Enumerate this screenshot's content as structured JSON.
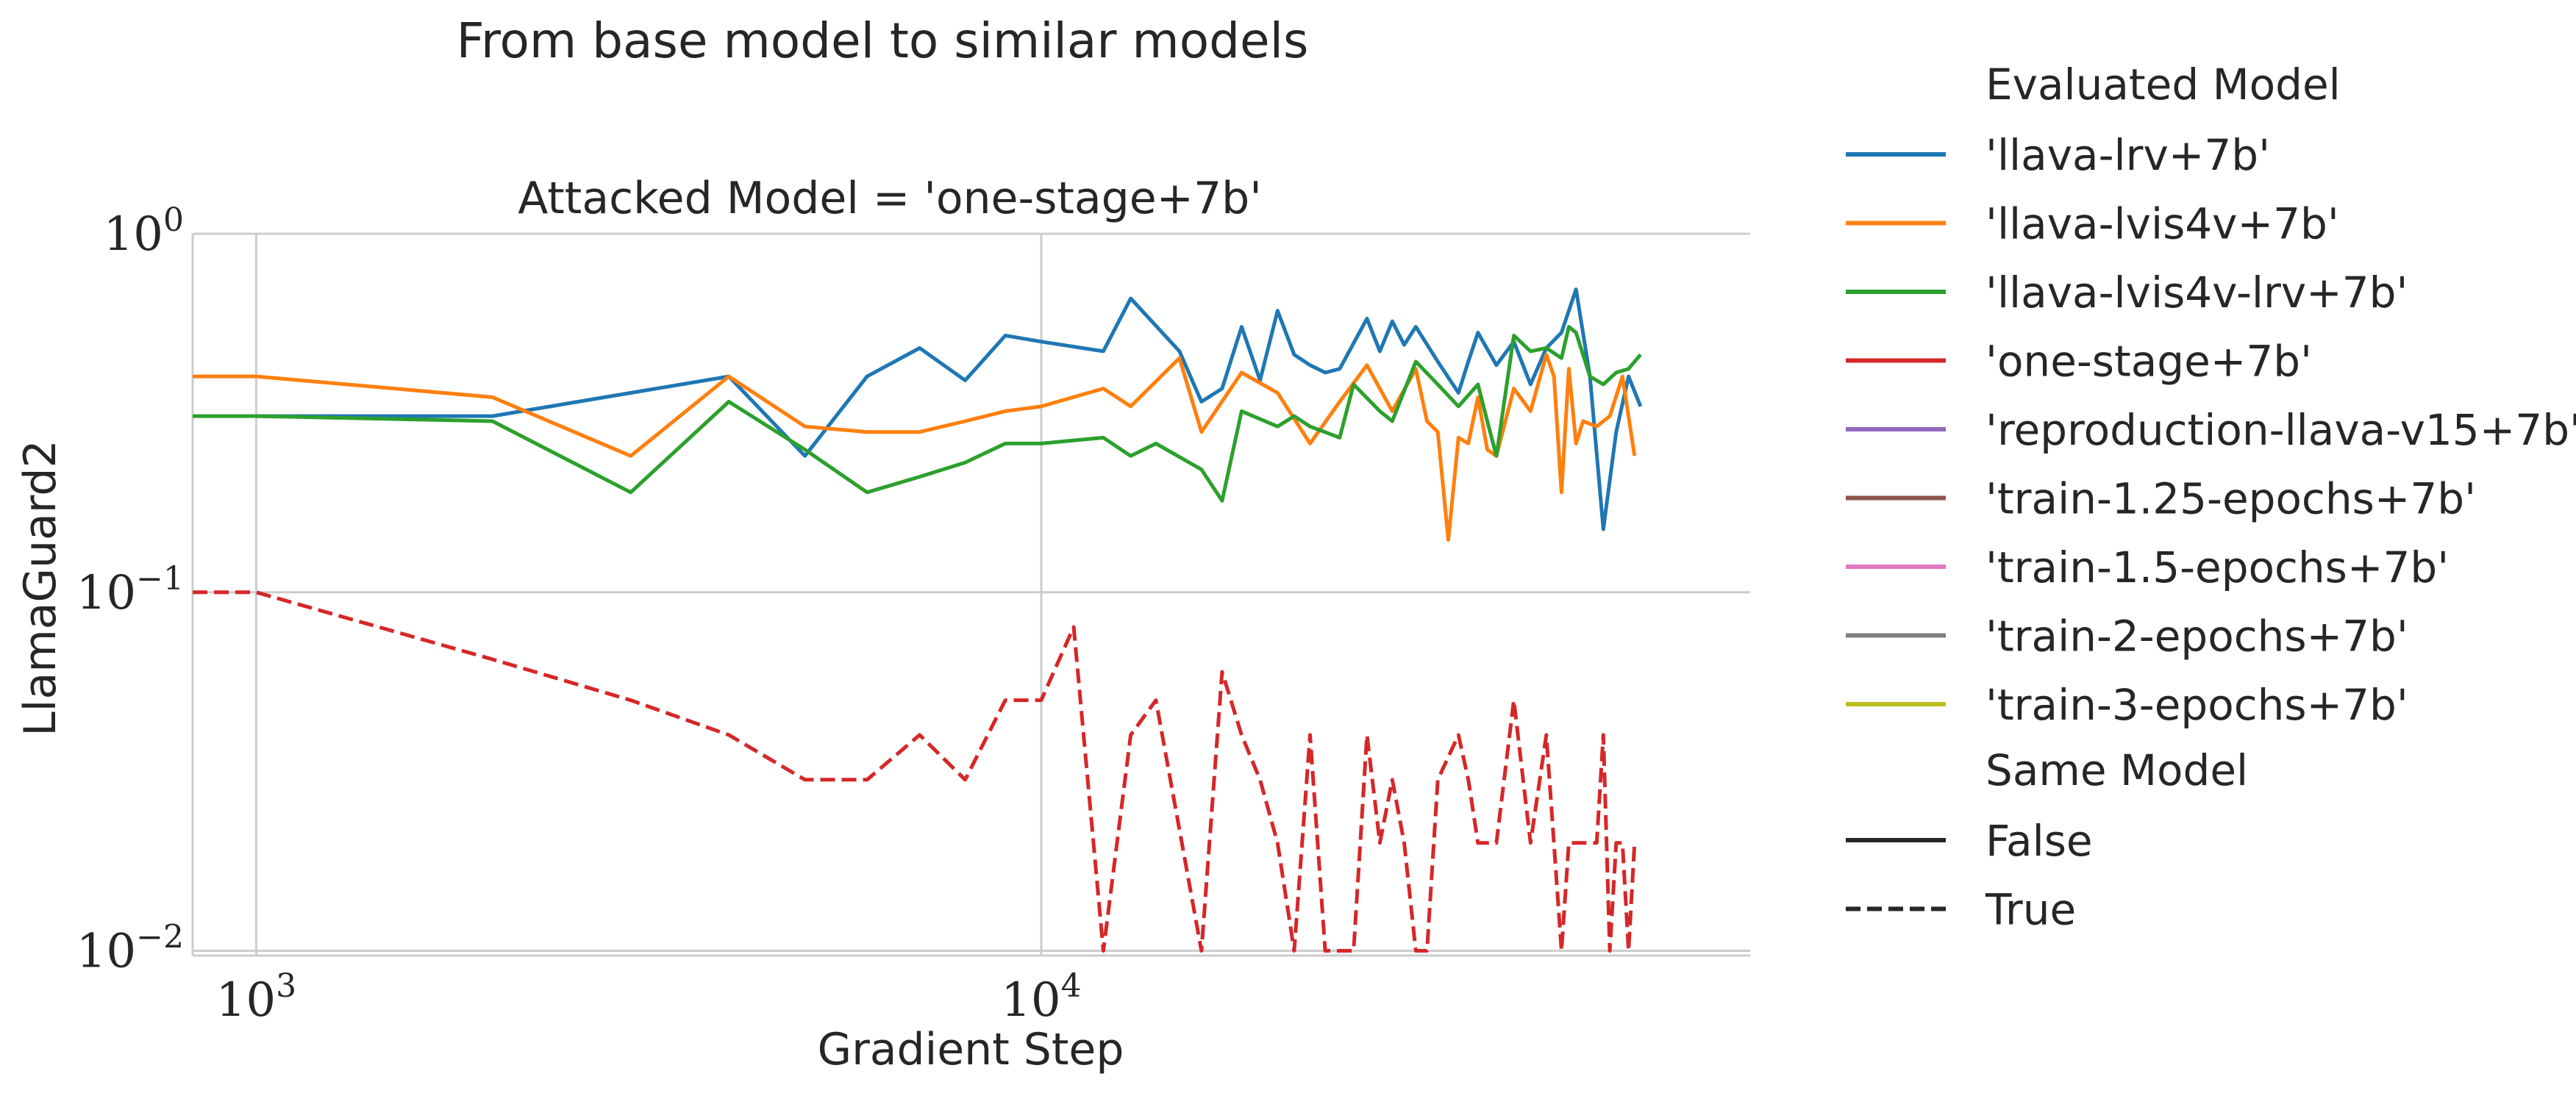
{
  "figure": {
    "suptitle": "From base model to similar models"
  },
  "chart_data": {
    "type": "line",
    "title": "Attacked Model = 'one-stage+7b'",
    "xlabel": "Gradient Step",
    "ylabel": "LlamaGuard2",
    "xscale": "log",
    "yscale": "log",
    "xlim": [
      830,
      80000
    ],
    "ylim": [
      0.0097,
      1.0
    ],
    "x_ticks": [
      {
        "value": 1000,
        "base": "10",
        "exp": "3"
      },
      {
        "value": 10000,
        "base": "10",
        "exp": "4"
      }
    ],
    "y_ticks": [
      {
        "value": 1.0,
        "base": "10",
        "exp": "0"
      },
      {
        "value": 0.1,
        "base": "10",
        "exp": "−1"
      },
      {
        "value": 0.01,
        "base": "10",
        "exp": "−2"
      }
    ],
    "grid": true,
    "legend": {
      "placement": "outside-right",
      "hue_title": "Evaluated Model",
      "style_title": "Same Model",
      "style_entries": [
        {
          "label": "False",
          "dash": "solid"
        },
        {
          "label": "True",
          "dash": "dashed"
        }
      ]
    },
    "series": [
      {
        "name": "'llava-lrv+7b'",
        "color": "#1f77b4",
        "dash": "solid",
        "x": [
          1000,
          2000,
          4000,
          5000,
          6000,
          7000,
          8000,
          9000,
          10000,
          12000,
          13000,
          15000,
          16000,
          17000,
          18000,
          19000,
          20000,
          21000,
          22000,
          23000,
          24000,
          26000,
          27000,
          28000,
          29000,
          30000,
          32000,
          34000,
          35000,
          36000,
          38000,
          40000,
          42000,
          44000,
          46000,
          48000,
          50000,
          52000,
          54000,
          56000,
          58000
        ],
        "y": [
          0.31,
          0.31,
          0.4,
          0.24,
          0.4,
          0.48,
          0.39,
          0.52,
          0.5,
          0.47,
          0.66,
          0.47,
          0.34,
          0.37,
          0.55,
          0.39,
          0.61,
          0.46,
          0.43,
          0.41,
          0.42,
          0.58,
          0.47,
          0.57,
          0.49,
          0.55,
          0.44,
          0.36,
          0.44,
          0.53,
          0.43,
          0.5,
          0.38,
          0.48,
          0.53,
          0.7,
          0.4,
          0.15,
          0.28,
          0.4,
          0.33
        ]
      },
      {
        "name": "'llava-lvis4v+7b'",
        "color": "#ff7f0e",
        "dash": "solid",
        "x": [
          830,
          1000,
          2000,
          3000,
          4000,
          5000,
          6000,
          7000,
          8000,
          9000,
          10000,
          12000,
          13000,
          15000,
          16000,
          18000,
          20000,
          22000,
          24000,
          26000,
          28000,
          30000,
          31000,
          32000,
          33000,
          34000,
          35000,
          36000,
          37000,
          38000,
          40000,
          42000,
          44000,
          45000,
          46000,
          47000,
          48000,
          49000,
          51000,
          53000,
          55000,
          57000
        ],
        "y": [
          0.4,
          0.4,
          0.35,
          0.24,
          0.4,
          0.29,
          0.28,
          0.28,
          0.3,
          0.32,
          0.33,
          0.37,
          0.33,
          0.45,
          0.28,
          0.41,
          0.36,
          0.26,
          0.34,
          0.43,
          0.32,
          0.42,
          0.3,
          0.28,
          0.14,
          0.27,
          0.26,
          0.35,
          0.25,
          0.24,
          0.37,
          0.32,
          0.46,
          0.4,
          0.19,
          0.42,
          0.26,
          0.3,
          0.29,
          0.31,
          0.4,
          0.24
        ]
      },
      {
        "name": "'llava-lvis4v-lrv+7b'",
        "color": "#2ca02c",
        "dash": "solid",
        "x": [
          830,
          1000,
          2000,
          3000,
          4000,
          5000,
          6000,
          7000,
          8000,
          9000,
          10000,
          12000,
          13000,
          14000,
          16000,
          17000,
          18000,
          20000,
          21000,
          22000,
          24000,
          25000,
          27000,
          28000,
          30000,
          32000,
          34000,
          36000,
          37000,
          38000,
          40000,
          42000,
          44000,
          46000,
          47000,
          48000,
          50000,
          52000,
          54000,
          56000,
          58000
        ],
        "y": [
          0.31,
          0.31,
          0.3,
          0.19,
          0.34,
          0.25,
          0.19,
          0.21,
          0.23,
          0.26,
          0.26,
          0.27,
          0.24,
          0.26,
          0.22,
          0.18,
          0.32,
          0.29,
          0.31,
          0.29,
          0.27,
          0.38,
          0.32,
          0.3,
          0.44,
          0.38,
          0.33,
          0.38,
          0.3,
          0.24,
          0.52,
          0.47,
          0.48,
          0.45,
          0.55,
          0.53,
          0.4,
          0.38,
          0.41,
          0.42,
          0.46
        ]
      },
      {
        "name": "'one-stage+7b'",
        "color": "#d62728",
        "dash": "dashed",
        "x": [
          830,
          1000,
          2000,
          3000,
          4000,
          5000,
          6000,
          7000,
          8000,
          9000,
          10000,
          11000,
          12000,
          13000,
          14000,
          16000,
          17000,
          18000,
          19000,
          20000,
          21000,
          22000,
          23000,
          24000,
          25000,
          26000,
          27000,
          28000,
          29000,
          30000,
          31000,
          32000,
          34000,
          35000,
          36000,
          38000,
          40000,
          42000,
          44000,
          46000,
          47000,
          48000,
          49000,
          50000,
          51000,
          52000,
          53000,
          54000,
          55000,
          56000,
          57000
        ],
        "y": [
          0.1,
          0.1,
          0.065,
          0.05,
          0.04,
          0.03,
          0.03,
          0.04,
          0.03,
          0.05,
          0.05,
          0.08,
          0.01,
          0.04,
          0.05,
          0.01,
          0.06,
          0.04,
          0.03,
          0.02,
          0.01,
          0.04,
          0.01,
          0.01,
          0.01,
          0.04,
          0.02,
          0.03,
          0.02,
          0.01,
          0.01,
          0.03,
          0.04,
          0.03,
          0.02,
          0.02,
          0.05,
          0.02,
          0.04,
          0.01,
          0.02,
          0.02,
          0.02,
          0.02,
          0.02,
          0.04,
          0.01,
          0.02,
          0.02,
          0.01,
          0.02
        ]
      },
      {
        "name": "'reproduction-llava-v15+7b'",
        "color": "#9467bd",
        "dash": "solid",
        "x": [],
        "y": []
      },
      {
        "name": "'train-1.25-epochs+7b'",
        "color": "#8c564b",
        "dash": "solid",
        "x": [],
        "y": []
      },
      {
        "name": "'train-1.5-epochs+7b'",
        "color": "#e377c2",
        "dash": "solid",
        "x": [],
        "y": []
      },
      {
        "name": "'train-2-epochs+7b'",
        "color": "#7f7f7f",
        "dash": "solid",
        "x": [],
        "y": []
      },
      {
        "name": "'train-3-epochs+7b'",
        "color": "#bcbd22",
        "dash": "solid",
        "x": [],
        "y": []
      }
    ]
  }
}
